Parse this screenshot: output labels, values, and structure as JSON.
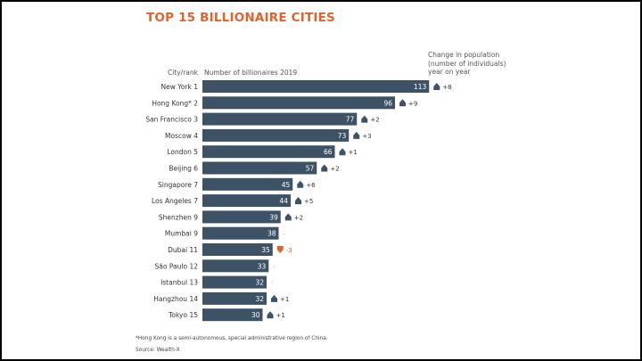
{
  "chart_data": {
    "type": "bar",
    "orientation": "horizontal",
    "title": "TOP 15 BILLIONAIRE CITIES",
    "category_header": "City/rank",
    "value_header": "Number of billionaires 2019",
    "change_header": [
      "Change in population",
      "(number of individuals)",
      "year on year"
    ],
    "categories": [
      "New York 1",
      "Hong Kong* 2",
      "San Francisco 3",
      "Moscow 4",
      "London 5",
      "Beijing 6",
      "Singapore 7",
      "Los Angeles 7",
      "Shenzhen 9",
      "Mumbai 9",
      "Dubai 11",
      "São Paulo 12",
      "Istanbul 13",
      "Hangzhou 14",
      "Tokyo 15"
    ],
    "values": [
      113,
      96,
      77,
      73,
      66,
      57,
      45,
      44,
      39,
      38,
      35,
      33,
      32,
      32,
      30
    ],
    "changes": [
      "+8",
      "+9",
      "+2",
      "+3",
      "+1",
      "+2",
      "+6",
      "+5",
      "+2",
      "-",
      "-3",
      "-",
      "-",
      "+1",
      "+1"
    ],
    "colors": {
      "bar": "#3e5266",
      "title": "#e0622c",
      "negative": "#e0622c",
      "positive": "#3e5266"
    },
    "footnote": "*Hong Kong is a semi-autonomous, special administrative region of China.",
    "source": "Source: Wealth-X"
  }
}
